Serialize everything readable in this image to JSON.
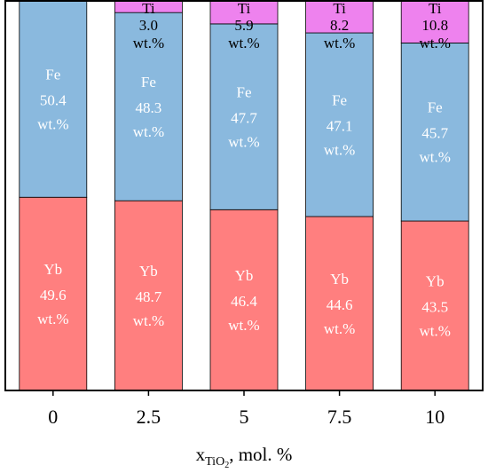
{
  "chart_data": {
    "type": "bar",
    "stacked": true,
    "percent_normalized": true,
    "categories": [
      "0",
      "2.5",
      "5",
      "7.5",
      "10"
    ],
    "series": [
      {
        "name": "Yb",
        "values": [
          49.6,
          48.7,
          46.4,
          44.6,
          43.5
        ],
        "color": "#FF7F7F"
      },
      {
        "name": "Fe",
        "values": [
          50.4,
          48.3,
          47.7,
          47.1,
          45.7
        ],
        "color": "#8AB9DE"
      },
      {
        "name": "Ti",
        "values": [
          0.0,
          3.0,
          5.9,
          8.2,
          10.8
        ],
        "color": "#EE82EE"
      }
    ],
    "segment_labels": {
      "Yb": [
        [
          "Yb",
          "49.6",
          "wt.%"
        ],
        [
          "Yb",
          "48.7",
          "wt.%"
        ],
        [
          "Yb",
          "46.4",
          "wt.%"
        ],
        [
          "Yb",
          "44.6",
          "wt.%"
        ],
        [
          "Yb",
          "43.5",
          "wt.%"
        ]
      ],
      "Fe": [
        [
          "Fe",
          "50.4",
          "wt.%"
        ],
        [
          "Fe",
          "48.3",
          "wt.%"
        ],
        [
          "Fe",
          "47.7",
          "wt.%"
        ],
        [
          "Fe",
          "47.1",
          "wt.%"
        ],
        [
          "Fe",
          "45.7",
          "wt.%"
        ]
      ],
      "Ti": [
        [],
        [
          "Ti",
          "3.0",
          "wt.%"
        ],
        [
          "Ti",
          "5.9",
          "wt.%"
        ],
        [
          "Ti",
          "8.2",
          "wt.%"
        ],
        [
          "Ti",
          "10.8",
          "wt.%"
        ]
      ]
    },
    "xlabel": {
      "main": "x",
      "sub": "TiO",
      "sub2": "2",
      "rest": ", mol. %"
    },
    "ylabel": "",
    "title": "",
    "ylim": [
      0,
      100
    ],
    "grid": false,
    "legend": "none"
  }
}
